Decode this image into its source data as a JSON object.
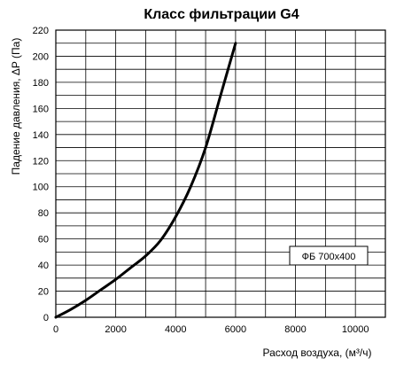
{
  "chart_data": {
    "type": "line",
    "title": "Класс фильтрации G4",
    "ylabel": "Падение давления, ΔP (Па)",
    "xlabel": "Расход воздуха, (м³/ч)",
    "xlim": [
      0,
      11000
    ],
    "ylim": [
      0,
      220
    ],
    "x_ticks": [
      0,
      2000,
      4000,
      6000,
      8000,
      10000
    ],
    "y_ticks": [
      0,
      20,
      40,
      60,
      80,
      100,
      120,
      140,
      160,
      180,
      200,
      220
    ],
    "x_tick_labels": [
      "0",
      "2000",
      "4000",
      "6000",
      "8000",
      "10000"
    ],
    "y_tick_labels": [
      "0",
      "20",
      "40",
      "60",
      "80",
      "100",
      "120",
      "140",
      "160",
      "180",
      "200",
      "220"
    ],
    "x_grid_step": 1000,
    "y_grid_step": 10,
    "grid": true,
    "legend_position": "right",
    "legend_label": "ФБ 700x400",
    "series": [
      {
        "name": "ФБ 700x400",
        "color": "#000000",
        "x": [
          0,
          500,
          1000,
          1500,
          2000,
          2500,
          3000,
          3500,
          4000,
          4500,
          5000,
          5500,
          6000
        ],
        "y": [
          0,
          6,
          13,
          21,
          29,
          38,
          47,
          59,
          77,
          100,
          130,
          170,
          210
        ]
      }
    ]
  }
}
